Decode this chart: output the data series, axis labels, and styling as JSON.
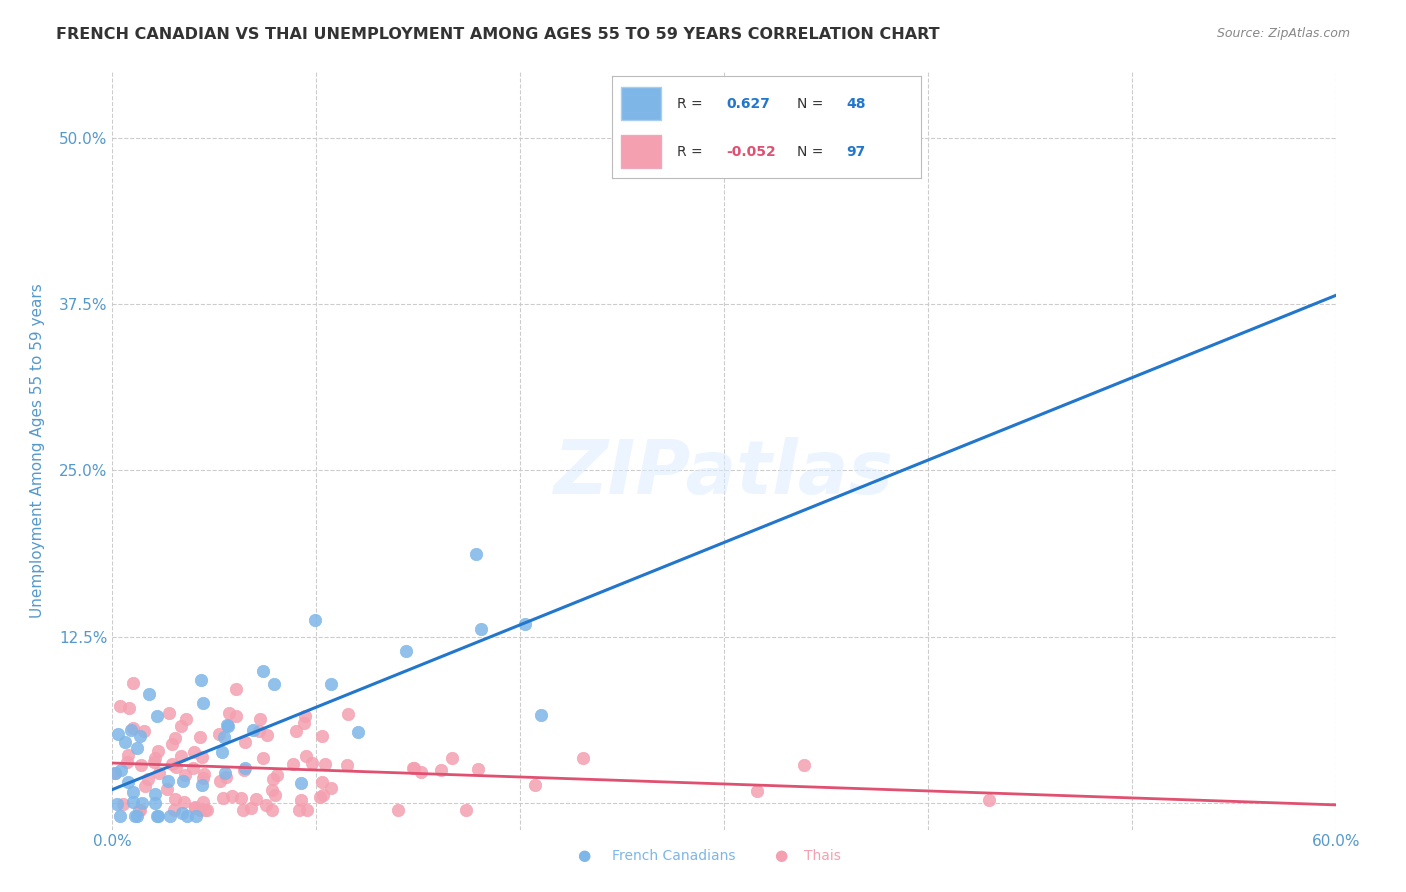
{
  "title": "FRENCH CANADIAN VS THAI UNEMPLOYMENT AMONG AGES 55 TO 59 YEARS CORRELATION CHART",
  "source": "Source: ZipAtlas.com",
  "ylabel": "Unemployment Among Ages 55 to 59 years",
  "xlim": [
    0.0,
    0.6
  ],
  "ylim": [
    -0.02,
    0.55
  ],
  "xticks": [
    0.0,
    0.1,
    0.2,
    0.3,
    0.4,
    0.5,
    0.6
  ],
  "yticks": [
    0.0,
    0.125,
    0.25,
    0.375,
    0.5
  ],
  "french_color": "#7EB6E8",
  "thai_color": "#F4A0B0",
  "french_R": 0.627,
  "french_N": 48,
  "thai_R": -0.052,
  "thai_N": 97,
  "legend_label_1": "French Canadians",
  "legend_label_2": "Thais",
  "watermark": "ZIPatlas",
  "background_color": "#ffffff",
  "grid_color": "#cccccc",
  "title_color": "#333333",
  "axis_label_color": "#5599cc",
  "seed_french": 42,
  "seed_thai": 123
}
